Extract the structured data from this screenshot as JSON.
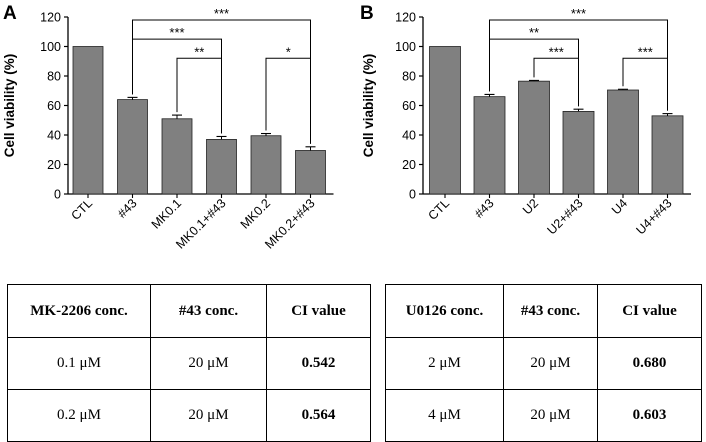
{
  "panels": [
    {
      "letter": "A"
    },
    {
      "letter": "B"
    }
  ],
  "chart_data": [
    {
      "type": "bar",
      "panel": "A",
      "title": "",
      "xlabel": "",
      "ylabel": "Cell viability (%)",
      "ylim": [
        0,
        120
      ],
      "yticks": [
        "0",
        "20",
        "40",
        "60",
        "80",
        "100",
        "120"
      ],
      "categories": [
        "CTL",
        "#43",
        "MK0.1",
        "MK0.1+#43",
        "MK0.2",
        "MK0.2+#43"
      ],
      "values": [
        100,
        64,
        51,
        37,
        39.5,
        29.5
      ],
      "errors": [
        0,
        1.5,
        2.5,
        2,
        1.5,
        2.5
      ],
      "bar_color": "#808080",
      "significance": [
        {
          "from": 1,
          "to": 5,
          "label": "***",
          "level": 118
        },
        {
          "from": 1,
          "to": 3,
          "label": "***",
          "level": 105
        },
        {
          "from": 2,
          "to": 3,
          "label": "**",
          "level": 92
        },
        {
          "from": 4,
          "to": 5,
          "label": "*",
          "level": 92
        }
      ]
    },
    {
      "type": "bar",
      "panel": "B",
      "title": "",
      "xlabel": "",
      "ylabel": "Cell viability (%)",
      "ylim": [
        0,
        120
      ],
      "yticks": [
        "0",
        "20",
        "40",
        "60",
        "80",
        "100",
        "120"
      ],
      "categories": [
        "CTL",
        "#43",
        "U2",
        "U2+#43",
        "U4",
        "U4+#43"
      ],
      "values": [
        100,
        66,
        76.5,
        56,
        70.5,
        53
      ],
      "errors": [
        0,
        1.5,
        0.5,
        1.5,
        0.5,
        1.5
      ],
      "bar_color": "#808080",
      "significance": [
        {
          "from": 1,
          "to": 5,
          "label": "***",
          "level": 118
        },
        {
          "from": 1,
          "to": 3,
          "label": "**",
          "level": 105
        },
        {
          "from": 2,
          "to": 3,
          "label": "***",
          "level": 92
        },
        {
          "from": 4,
          "to": 5,
          "label": "***",
          "level": 92
        }
      ]
    }
  ],
  "tables": [
    {
      "headers": [
        "MK-2206 conc.",
        "#43 conc.",
        "CI value"
      ],
      "rows": [
        [
          "0.1 μM",
          "20 μM",
          "0.542"
        ],
        [
          "0.2 μM",
          "20 μM",
          "0.564"
        ]
      ]
    },
    {
      "headers": [
        "U0126 conc.",
        "#43 conc.",
        "CI value"
      ],
      "rows": [
        [
          "2 μM",
          "20 μM",
          "0.680"
        ],
        [
          "4 μM",
          "20 μM",
          "0.603"
        ]
      ]
    }
  ]
}
